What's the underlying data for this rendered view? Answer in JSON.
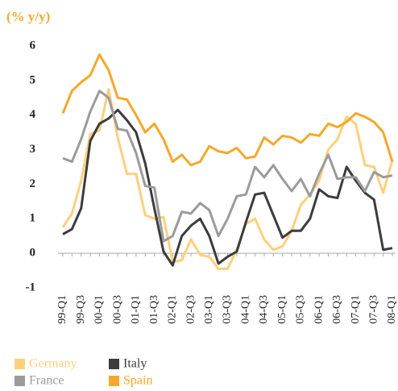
{
  "chart_data": {
    "type": "line",
    "subtitle": "(% y/y)",
    "categories": [
      "99-Q1",
      null,
      "99-Q3",
      null,
      "00-Q1",
      null,
      "00-Q3",
      null,
      "01-Q1",
      null,
      "01-Q3",
      null,
      "02-Q1",
      null,
      "02-Q3",
      null,
      "03-Q1",
      null,
      "03-Q3",
      null,
      "04-Q1",
      null,
      "04-Q3",
      null,
      "05-Q1",
      null,
      "05-Q3",
      null,
      "06-Q1",
      null,
      "06-Q3",
      null,
      "07-Q1",
      null,
      "07-Q3",
      null,
      "08-Q1"
    ],
    "series": [
      {
        "name": "Germany",
        "color": "#fcd07c",
        "values": [
          0.75,
          1.15,
          2.1,
          3.45,
          3.55,
          4.75,
          3.35,
          2.3,
          2.3,
          1.1,
          1.0,
          1.05,
          -0.25,
          -0.2,
          0.4,
          -0.05,
          -0.1,
          -0.45,
          -0.45,
          0.1,
          0.85,
          1.0,
          0.4,
          0.1,
          0.2,
          0.65,
          1.4,
          1.7,
          2.1,
          3.0,
          3.3,
          3.95,
          3.75,
          2.55,
          2.5,
          1.75,
          2.7
        ]
      },
      {
        "name": "Italy",
        "color": "#3c3c3c",
        "values": [
          0.55,
          0.7,
          1.3,
          3.25,
          3.75,
          3.9,
          4.15,
          3.85,
          3.5,
          2.6,
          1.3,
          0.05,
          -0.35,
          0.5,
          0.8,
          1.0,
          0.5,
          -0.3,
          -0.1,
          0.05,
          0.9,
          1.7,
          1.75,
          1.1,
          0.45,
          0.65,
          0.65,
          1.0,
          1.85,
          1.65,
          1.6,
          2.5,
          2.1,
          1.75,
          1.55,
          0.1,
          0.15
        ]
      },
      {
        "name": "France",
        "color": "#9b9b9b",
        "values": [
          2.75,
          2.65,
          3.3,
          4.1,
          4.7,
          4.5,
          3.6,
          3.55,
          2.9,
          1.95,
          1.9,
          0.35,
          0.5,
          1.2,
          1.15,
          1.45,
          1.25,
          0.5,
          1.0,
          1.65,
          1.7,
          2.5,
          2.2,
          2.55,
          2.15,
          1.8,
          2.15,
          1.65,
          2.3,
          2.85,
          2.15,
          2.2,
          2.2,
          1.8,
          2.35,
          2.2,
          2.25
        ]
      },
      {
        "name": "Spain",
        "color": "#f5a82a",
        "values": [
          4.05,
          4.7,
          4.95,
          5.15,
          5.75,
          5.3,
          4.5,
          4.45,
          4.0,
          3.5,
          3.75,
          3.3,
          2.65,
          2.85,
          2.55,
          2.65,
          3.1,
          2.95,
          2.9,
          3.05,
          2.75,
          2.8,
          3.35,
          3.15,
          3.4,
          3.35,
          3.2,
          3.45,
          3.4,
          3.75,
          3.65,
          3.8,
          4.05,
          3.95,
          3.8,
          3.5,
          2.65
        ]
      }
    ],
    "ylim": [
      -1,
      6
    ],
    "yticks": [
      -1,
      0,
      1,
      2,
      3,
      4,
      5,
      6
    ],
    "grid": false
  }
}
